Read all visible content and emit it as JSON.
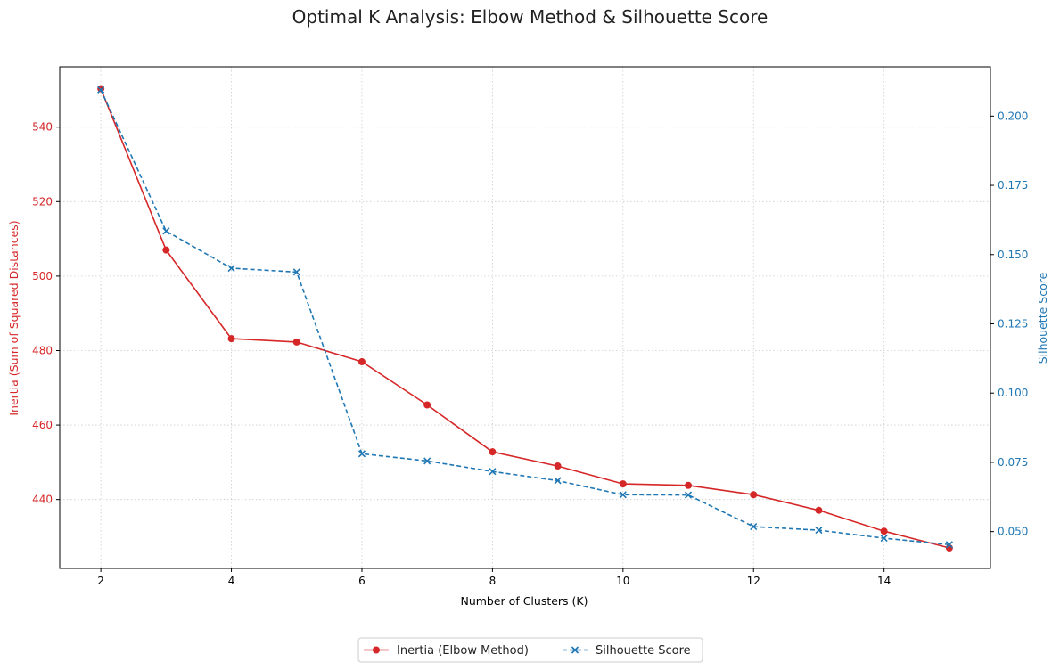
{
  "chart_data": {
    "type": "line",
    "title": "Optimal K Analysis: Elbow Method & Silhouette Score",
    "xlabel": "Number of Clusters (K)",
    "ylabel_left": "Inertia (Sum of Squared Distances)",
    "ylabel_right": "Silhouette Score",
    "x": [
      2,
      3,
      4,
      5,
      6,
      7,
      8,
      9,
      10,
      11,
      12,
      13,
      14,
      15
    ],
    "xlim": [
      1.37,
      15.63
    ],
    "xticks": [
      2,
      4,
      6,
      8,
      10,
      12,
      14
    ],
    "ylim_left": [
      421.5,
      556.2
    ],
    "yticks_left": [
      440,
      460,
      480,
      500,
      520,
      540
    ],
    "ylim_right": [
      0.0367,
      0.2178
    ],
    "yticks_right": [
      0.05,
      0.075,
      0.1,
      0.125,
      0.15,
      0.175,
      0.2
    ],
    "yticks_right_labels": [
      "0.050",
      "0.075",
      "0.100",
      "0.125",
      "0.150",
      "0.175",
      "0.200"
    ],
    "grid": true,
    "legend_position": "bottom-center",
    "series": [
      {
        "name": "Inertia (Elbow Method)",
        "axis": "left",
        "color": "#d62728",
        "marker": "circle",
        "linestyle": "solid",
        "values": [
          550.3,
          507.0,
          483.2,
          482.3,
          477.0,
          465.4,
          452.8,
          449.0,
          444.2,
          443.8,
          441.3,
          437.1,
          431.5,
          427.0
        ]
      },
      {
        "name": "Silhouette Score",
        "axis": "right",
        "color": "#1f77b4",
        "marker": "x",
        "linestyle": "dashed",
        "values": [
          0.2095,
          0.1585,
          0.1451,
          0.1437,
          0.0781,
          0.0755,
          0.0717,
          0.0684,
          0.0633,
          0.0632,
          0.0518,
          0.0505,
          0.0476,
          0.0453
        ]
      }
    ]
  }
}
